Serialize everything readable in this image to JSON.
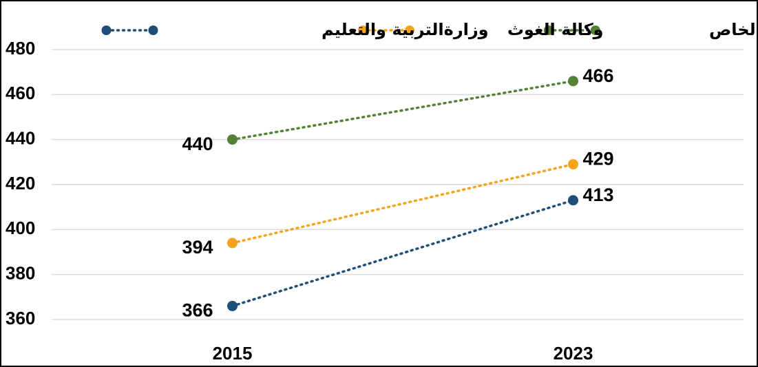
{
  "chart_data": {
    "type": "line",
    "categories": [
      "2015",
      "2023"
    ],
    "series": [
      {
        "name": "التعليم الخاص",
        "color": "#548235",
        "values": [
          440,
          466
        ]
      },
      {
        "name": "وكالة الغوث",
        "color": "#f5a31a",
        "values": [
          394,
          429
        ]
      },
      {
        "name": "وزارةالتربية والتعليم",
        "color": "#1f4e79",
        "values": [
          366,
          413
        ]
      }
    ],
    "ylim": [
      360,
      480
    ],
    "yticks": [
      360,
      380,
      400,
      420,
      440,
      460,
      480
    ],
    "grid": true,
    "legend": "top"
  }
}
